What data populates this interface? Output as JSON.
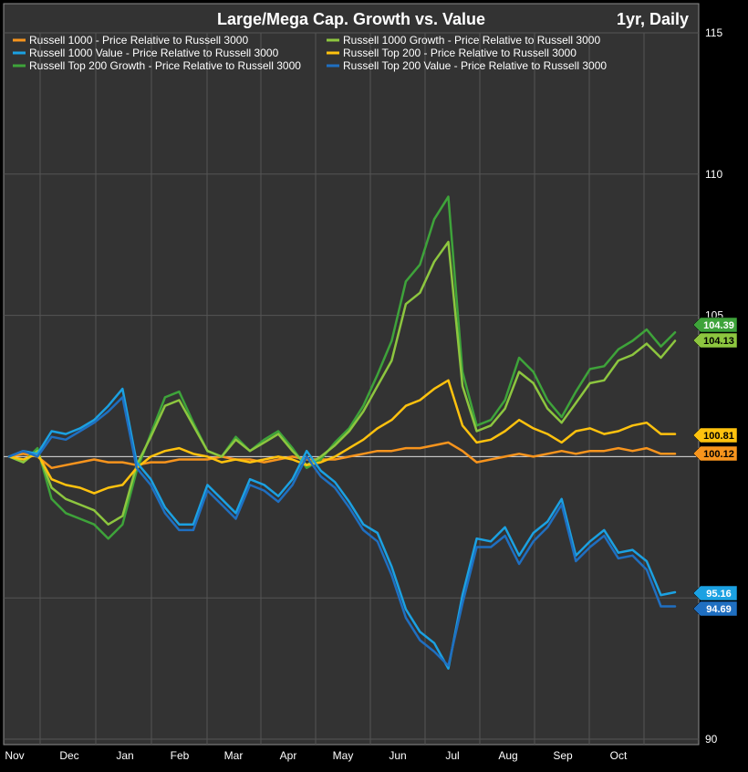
{
  "chart_data": {
    "type": "line",
    "title": "Large/Mega Cap. Growth vs. Value",
    "period_label": "1yr, Daily",
    "xlabel": "",
    "ylabel": "",
    "ylim": [
      90,
      115
    ],
    "y_ticks": [
      90,
      105,
      110,
      115
    ],
    "x_ticks": [
      "Nov",
      "Dec",
      "Jan",
      "Feb",
      "Mar",
      "Apr",
      "May",
      "Jun",
      "Jul",
      "Aug",
      "Sep",
      "Oct"
    ],
    "grid": true,
    "legend_position": "top-left",
    "background": "#333333",
    "reference_value": 100,
    "x": [
      "Nov",
      "Nov",
      "Nov",
      "Dec",
      "Dec",
      "Dec",
      "Dec",
      "Jan",
      "Jan",
      "Jan",
      "Jan",
      "Feb",
      "Feb",
      "Feb",
      "Feb",
      "Mar",
      "Mar",
      "Mar",
      "Mar",
      "Apr",
      "Apr",
      "Apr",
      "Apr",
      "May",
      "May",
      "May",
      "May",
      "Jun",
      "Jun",
      "Jun",
      "Jun",
      "Jul",
      "Jul",
      "Jul",
      "Jul",
      "Aug",
      "Aug",
      "Aug",
      "Aug",
      "Sep",
      "Sep",
      "Sep",
      "Sep",
      "Oct",
      "Oct",
      "Oct",
      "Oct",
      "Oct"
    ],
    "series": [
      {
        "name": "Russell 1000 - Price Relative to Russell 3000",
        "color": "#f7941d",
        "end_label": "100.12",
        "values": [
          100.0,
          100.1,
          100.0,
          99.6,
          99.7,
          99.8,
          99.9,
          99.8,
          99.8,
          99.7,
          99.8,
          99.8,
          99.9,
          99.9,
          99.9,
          100.0,
          99.9,
          99.9,
          99.8,
          99.9,
          100.0,
          99.9,
          99.9,
          99.9,
          100.0,
          100.1,
          100.2,
          100.2,
          100.3,
          100.3,
          100.4,
          100.5,
          100.2,
          99.8,
          99.9,
          100.0,
          100.1,
          100.0,
          100.1,
          100.2,
          100.1,
          100.2,
          100.2,
          100.3,
          100.2,
          100.3,
          100.1,
          100.1
        ]
      },
      {
        "name": "Russell 1000 Value - Price Relative to Russell 3000",
        "color": "#1ba1e2",
        "end_label": "95.16",
        "values": [
          100.0,
          100.2,
          100.1,
          100.9,
          100.8,
          101.0,
          101.3,
          101.8,
          102.4,
          99.8,
          99.2,
          98.2,
          97.6,
          97.6,
          99.0,
          98.5,
          98.0,
          99.2,
          99.0,
          98.6,
          99.2,
          100.2,
          99.5,
          99.1,
          98.4,
          97.6,
          97.3,
          96.1,
          94.6,
          93.8,
          93.4,
          92.5,
          95.1,
          97.1,
          97.0,
          97.5,
          96.5,
          97.3,
          97.7,
          98.5,
          96.5,
          97.0,
          97.4,
          96.6,
          96.7,
          96.3,
          95.1,
          95.2
        ]
      },
      {
        "name": "Russell Top 200 Growth - Price Relative to Russell 3000",
        "color": "#3ea33a",
        "end_label": "104.39",
        "values": [
          100.0,
          99.8,
          100.3,
          98.5,
          98.0,
          97.8,
          97.6,
          97.1,
          97.6,
          99.5,
          100.8,
          102.1,
          102.3,
          101.2,
          100.2,
          100.0,
          100.7,
          100.2,
          100.6,
          100.9,
          100.3,
          99.6,
          99.9,
          100.5,
          101.0,
          101.8,
          102.9,
          104.1,
          106.2,
          106.8,
          108.4,
          109.2,
          103.0,
          101.1,
          101.3,
          102.0,
          103.5,
          103.0,
          102.0,
          101.4,
          102.3,
          103.1,
          103.2,
          103.8,
          104.1,
          104.5,
          103.9,
          104.4
        ]
      },
      {
        "name": "Russell 1000 Growth - Price Relative to Russell 3000",
        "color": "#8dc63f",
        "end_label": "104.13",
        "values": [
          100.0,
          99.8,
          100.2,
          98.9,
          98.5,
          98.3,
          98.1,
          97.6,
          97.9,
          99.7,
          100.7,
          101.8,
          102.0,
          101.1,
          100.2,
          100.0,
          100.6,
          100.2,
          100.5,
          100.8,
          100.2,
          99.7,
          100.0,
          100.4,
          100.9,
          101.6,
          102.5,
          103.4,
          105.4,
          105.8,
          106.9,
          107.6,
          102.5,
          100.9,
          101.1,
          101.7,
          103.0,
          102.6,
          101.7,
          101.2,
          101.9,
          102.6,
          102.7,
          103.4,
          103.6,
          104.0,
          103.5,
          104.1
        ]
      },
      {
        "name": "Russell Top 200 - Price Relative to Russell 3000",
        "color": "#ffc20e",
        "end_label": "100.81",
        "values": [
          100.0,
          99.9,
          100.1,
          99.2,
          99.0,
          98.9,
          98.7,
          98.9,
          99.0,
          99.6,
          100.0,
          100.2,
          100.3,
          100.1,
          100.0,
          99.8,
          99.9,
          99.8,
          99.9,
          100.0,
          99.9,
          99.7,
          99.8,
          100.0,
          100.3,
          100.6,
          101.0,
          101.3,
          101.8,
          102.0,
          102.4,
          102.7,
          101.1,
          100.5,
          100.6,
          100.9,
          101.3,
          101.0,
          100.8,
          100.5,
          100.9,
          101.0,
          100.8,
          100.9,
          101.1,
          101.2,
          100.8,
          100.8
        ]
      },
      {
        "name": "Russell Top 200 Value - Price Relative to Russell 3000",
        "color": "#1f6fc1",
        "end_label": "94.69",
        "values": [
          100.0,
          100.2,
          100.0,
          100.7,
          100.6,
          100.9,
          101.2,
          101.6,
          102.1,
          99.6,
          99.0,
          98.0,
          97.4,
          97.4,
          98.8,
          98.3,
          97.8,
          99.0,
          98.8,
          98.4,
          99.0,
          100.0,
          99.3,
          98.9,
          98.2,
          97.4,
          97.0,
          95.8,
          94.3,
          93.5,
          93.1,
          92.6,
          94.8,
          96.8,
          96.8,
          97.2,
          96.2,
          97.0,
          97.5,
          98.3,
          96.3,
          96.8,
          97.2,
          96.4,
          96.5,
          96.0,
          94.7,
          94.7
        ]
      }
    ]
  }
}
